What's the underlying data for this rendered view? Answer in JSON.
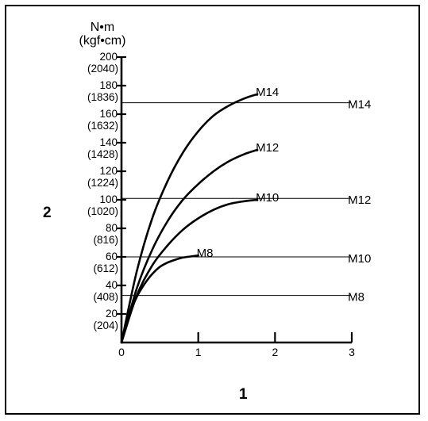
{
  "chart_data": {
    "type": "line",
    "y_unit_line1": "N•m",
    "y_unit_line2": "(kgf•cm)",
    "ylabel": "2",
    "xlabel": "1",
    "xlim": [
      0,
      3
    ],
    "ylim": [
      0,
      200
    ],
    "x_ticks": [
      "0",
      "1",
      "2",
      "3"
    ],
    "y_ticks": [
      {
        "value": 20,
        "label": "20",
        "sub": "(204)"
      },
      {
        "value": 40,
        "label": "40",
        "sub": "(408)"
      },
      {
        "value": 60,
        "label": "60",
        "sub": "(612)"
      },
      {
        "value": 80,
        "label": "80",
        "sub": "(816)"
      },
      {
        "value": 100,
        "label": "100",
        "sub": "(1020)"
      },
      {
        "value": 120,
        "label": "120",
        "sub": "(1224)"
      },
      {
        "value": 140,
        "label": "140",
        "sub": "(1428)"
      },
      {
        "value": 160,
        "label": "160",
        "sub": "(1632)"
      },
      {
        "value": 180,
        "label": "180",
        "sub": "(1836)"
      },
      {
        "value": 200,
        "label": "200",
        "sub": "(2040)"
      }
    ],
    "series": [
      {
        "name": "M8",
        "x": [
          0,
          0.1,
          0.2,
          0.3,
          0.4,
          0.5,
          0.6,
          0.7,
          0.8,
          0.9,
          1.0
        ],
        "y": [
          0,
          19,
          32,
          41,
          48,
          53,
          56,
          58,
          59.5,
          60.3,
          61
        ]
      },
      {
        "name": "M10",
        "x": [
          0,
          0.2,
          0.4,
          0.6,
          0.8,
          1.0,
          1.2,
          1.4,
          1.6,
          1.77
        ],
        "y": [
          0,
          33,
          54,
          68,
          79,
          87,
          93,
          97,
          99,
          100
        ]
      },
      {
        "name": "M12",
        "x": [
          0,
          0.2,
          0.4,
          0.6,
          0.8,
          1.0,
          1.2,
          1.4,
          1.6,
          1.77
        ],
        "y": [
          0,
          38,
          65,
          85,
          100,
          111,
          120,
          127,
          132,
          135
        ]
      },
      {
        "name": "M14",
        "x": [
          0,
          0.2,
          0.4,
          0.6,
          0.8,
          1.0,
          1.2,
          1.4,
          1.6,
          1.77
        ],
        "y": [
          0,
          50,
          87,
          113,
          133,
          148,
          159,
          166,
          171,
          174
        ]
      }
    ],
    "reference_lines": [
      {
        "name": "M14",
        "y": 168
      },
      {
        "name": "M12",
        "y": 101
      },
      {
        "name": "M10",
        "y": 60
      },
      {
        "name": "M8",
        "y": 33
      }
    ]
  }
}
